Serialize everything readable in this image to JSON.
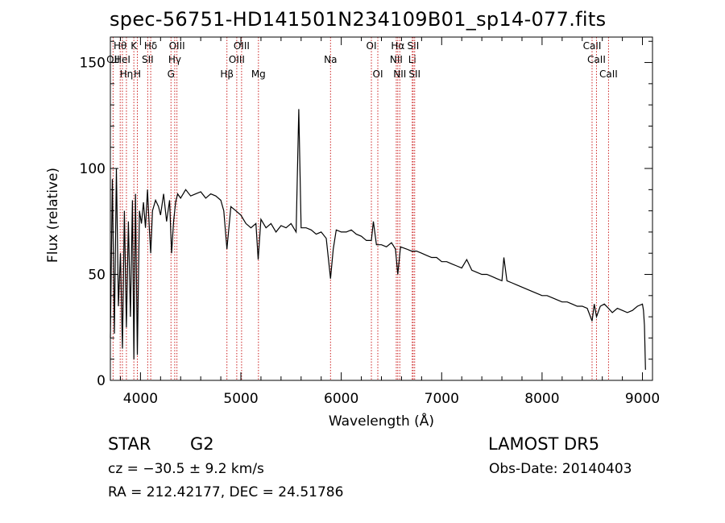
{
  "header": {
    "title": "spec-56751-HD141501N234109B01_sp14-077.fits"
  },
  "info": {
    "object_class": "STAR",
    "object_subclass": "G2",
    "survey": "LAMOST DR5",
    "cz": "cz = −30.5 ± 9.2 km/s",
    "obs_date": "Obs-Date: 20140403",
    "radec": "RA = 212.42177, DEC =  24.51786"
  },
  "chart_data": {
    "type": "line",
    "title": "spec-56751-HD141501N234109B01_sp14-077.fits",
    "xlabel": "Wavelength (Å)",
    "ylabel": "Flux (relative)",
    "xlim": [
      3700,
      9100
    ],
    "ylim": [
      0,
      162
    ],
    "x_ticks": [
      4000,
      5000,
      6000,
      7000,
      8000,
      9000
    ],
    "y_ticks": [
      0,
      50,
      100,
      150
    ],
    "grid": false,
    "line_color": "#000000",
    "marker_color": "#cc2222",
    "series": [
      {
        "x": [
          3700,
          3720,
          3740,
          3760,
          3780,
          3800,
          3820,
          3840,
          3860,
          3880,
          3900,
          3920,
          3934,
          3950,
          3969,
          3990,
          4010,
          4030,
          4050,
          4070,
          4090,
          4102,
          4120,
          4150,
          4180,
          4200,
          4230,
          4260,
          4290,
          4310,
          4330,
          4350,
          4370,
          4400,
          4450,
          4500,
          4550,
          4600,
          4650,
          4700,
          4750,
          4800,
          4830,
          4861,
          4900,
          4950,
          5000,
          5050,
          5100,
          5150,
          5172,
          5200,
          5250,
          5300,
          5350,
          5400,
          5450,
          5500,
          5550,
          5577,
          5600,
          5650,
          5700,
          5750,
          5800,
          5850,
          5893,
          5920,
          5950,
          6000,
          6050,
          6100,
          6150,
          6200,
          6250,
          6300,
          6320,
          6350,
          6400,
          6450,
          6500,
          6540,
          6563,
          6590,
          6650,
          6700,
          6750,
          6800,
          6850,
          6900,
          6950,
          7000,
          7050,
          7100,
          7150,
          7200,
          7250,
          7300,
          7350,
          7400,
          7450,
          7500,
          7550,
          7600,
          7620,
          7650,
          7700,
          7750,
          7800,
          7850,
          7900,
          7950,
          8000,
          8050,
          8100,
          8150,
          8200,
          8250,
          8300,
          8350,
          8400,
          8450,
          8498,
          8520,
          8542,
          8580,
          8620,
          8662,
          8700,
          8750,
          8800,
          8850,
          8900,
          8950,
          9000,
          9010,
          9020,
          9030
        ],
        "y": [
          20,
          95,
          22,
          100,
          35,
          60,
          15,
          80,
          25,
          75,
          30,
          85,
          10,
          88,
          12,
          80,
          74,
          84,
          72,
          90,
          70,
          60,
          80,
          85,
          82,
          78,
          88,
          75,
          85,
          60,
          75,
          84,
          88,
          86,
          90,
          87,
          88,
          89,
          86,
          88,
          87,
          85,
          80,
          62,
          82,
          80,
          78,
          74,
          72,
          74,
          57,
          76,
          72,
          74,
          70,
          73,
          72,
          74,
          70,
          128,
          72,
          72,
          71,
          69,
          70,
          67,
          48,
          62,
          71,
          70,
          70,
          71,
          69,
          68,
          66,
          66,
          75,
          64,
          64,
          63,
          65,
          62,
          50,
          63,
          62,
          61,
          61,
          60,
          59,
          58,
          58,
          56,
          56,
          55,
          54,
          53,
          57,
          52,
          51,
          50,
          50,
          49,
          48,
          47,
          58,
          47,
          46,
          45,
          44,
          43,
          42,
          41,
          40,
          40,
          39,
          38,
          37,
          37,
          36,
          35,
          35,
          34,
          28,
          36,
          30,
          35,
          36,
          34,
          32,
          34,
          33,
          32,
          33,
          35,
          36,
          33,
          26,
          5
        ]
      }
    ],
    "line_markers": [
      {
        "x": 3727,
        "row": 1,
        "label": "OII"
      },
      {
        "x": 3798,
        "row": 0,
        "label": "Hθ"
      },
      {
        "x": 3820,
        "row": 1,
        "label": "HeI"
      },
      {
        "x": 3860,
        "row": 2,
        "label": "Hη"
      },
      {
        "x": 3934,
        "row": 0,
        "label": "K"
      },
      {
        "x": 3969,
        "row": 2,
        "label": "H"
      },
      {
        "x": 4072,
        "row": 1,
        "label": "SII"
      },
      {
        "x": 4102,
        "row": 0,
        "label": "Hδ"
      },
      {
        "x": 4304,
        "row": 2,
        "label": "G"
      },
      {
        "x": 4341,
        "row": 1,
        "label": "Hγ"
      },
      {
        "x": 4363,
        "row": 0,
        "label": "OIII"
      },
      {
        "x": 4861,
        "row": 2,
        "label": "Hβ"
      },
      {
        "x": 4959,
        "row": 1,
        "label": "OIII"
      },
      {
        "x": 5007,
        "row": 0,
        "label": "OIII"
      },
      {
        "x": 5175,
        "row": 2,
        "label": "Mg"
      },
      {
        "x": 5893,
        "row": 1,
        "label": "Na"
      },
      {
        "x": 6300,
        "row": 0,
        "label": "OI"
      },
      {
        "x": 6364,
        "row": 2,
        "label": "OI"
      },
      {
        "x": 6548,
        "row": 1,
        "label": "NII"
      },
      {
        "x": 6563,
        "row": 0,
        "label": "Hα"
      },
      {
        "x": 6583,
        "row": 2,
        "label": "NII"
      },
      {
        "x": 6707,
        "row": 1,
        "label": "Li"
      },
      {
        "x": 6716,
        "row": 0,
        "label": "SII"
      },
      {
        "x": 6731,
        "row": 2,
        "label": "SII"
      },
      {
        "x": 8498,
        "row": 0,
        "label": "CaII"
      },
      {
        "x": 8542,
        "row": 1,
        "label": "CaII"
      },
      {
        "x": 8662,
        "row": 2,
        "label": "CaII"
      }
    ]
  }
}
